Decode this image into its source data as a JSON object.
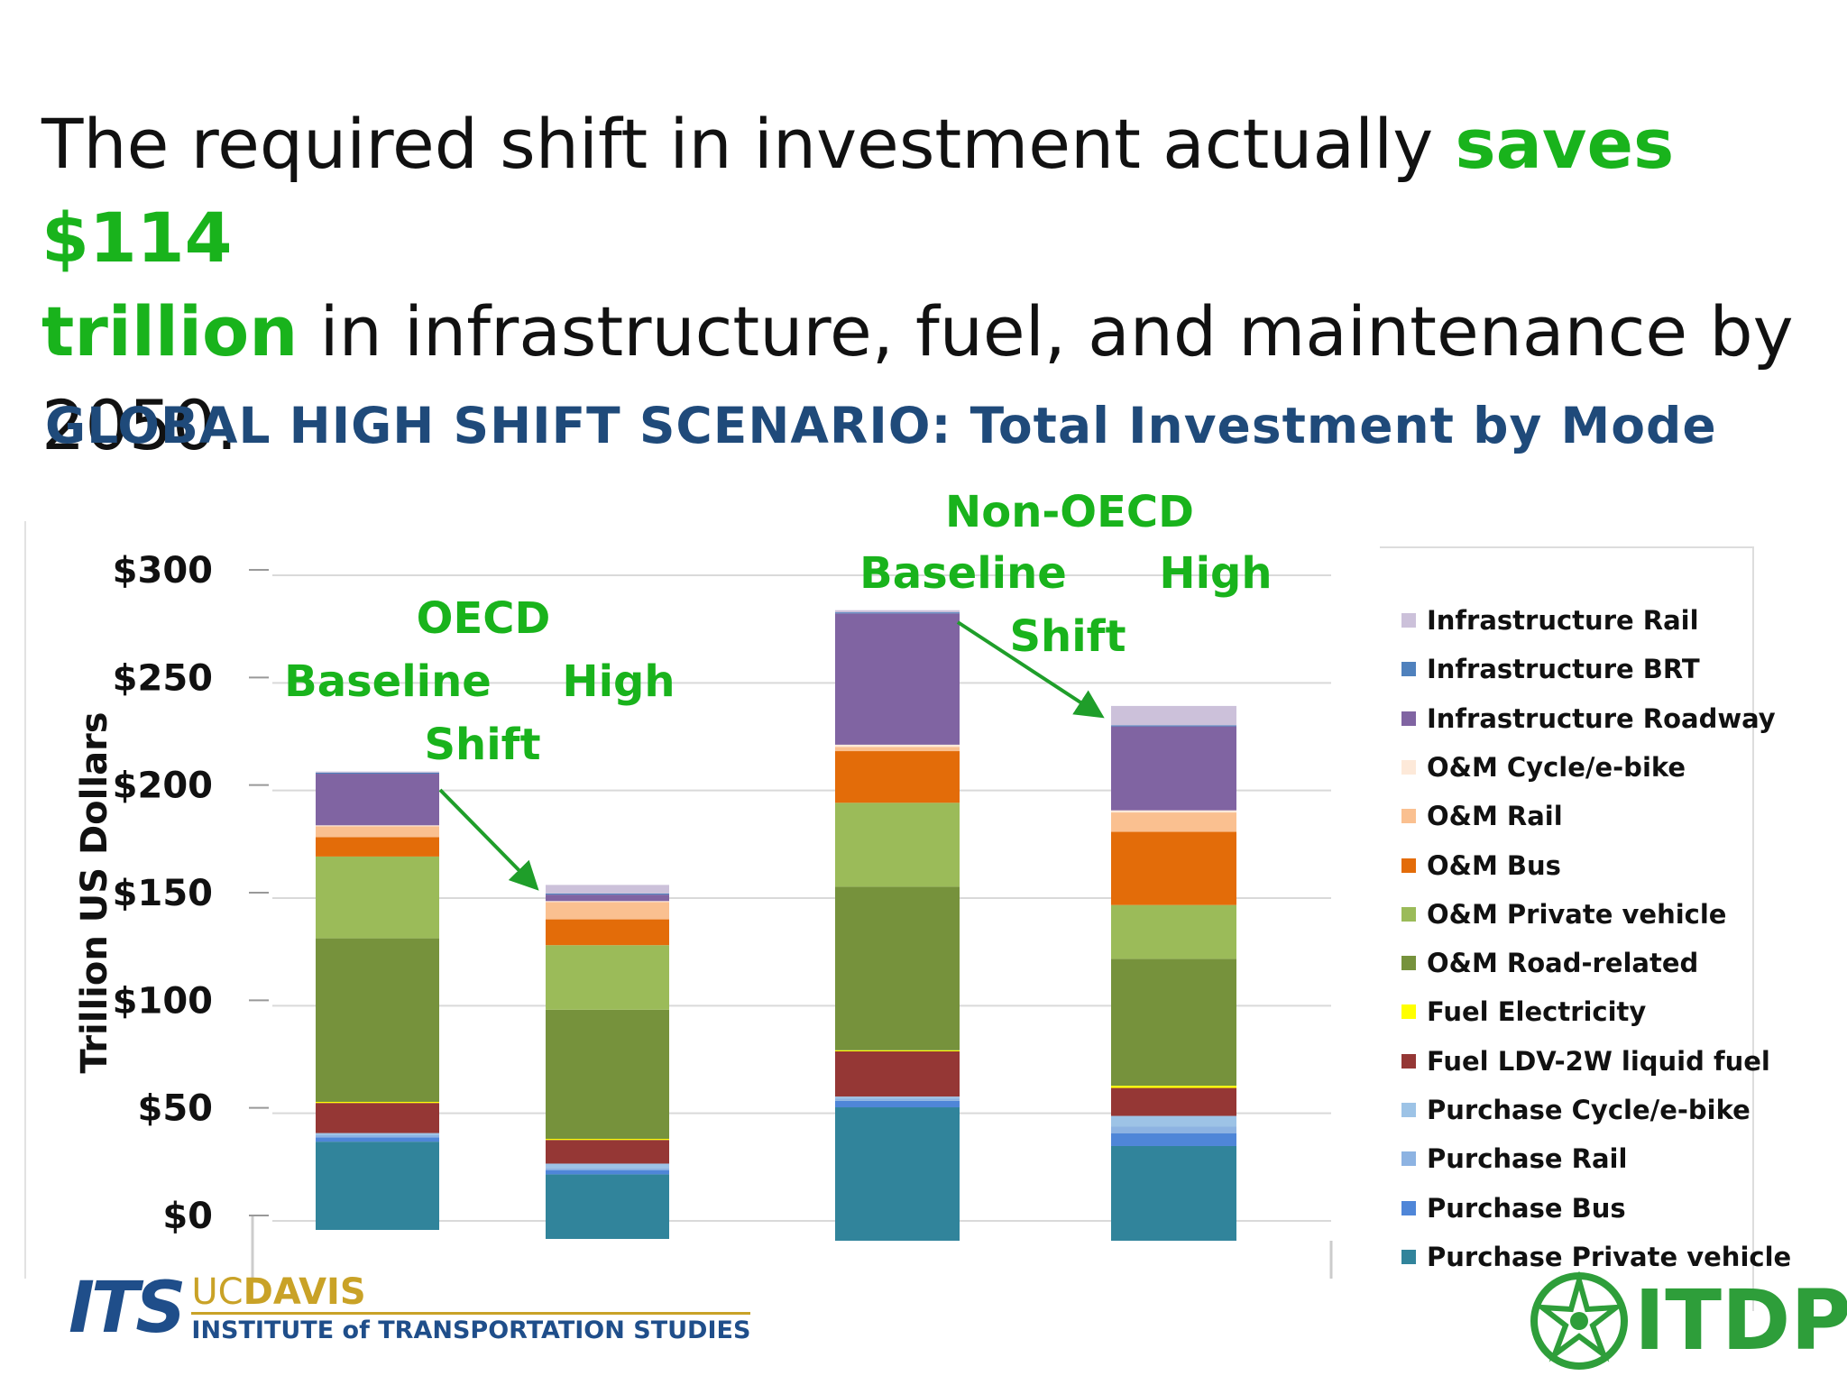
{
  "headline": {
    "part1": "The required shift in investment actually ",
    "highlight1": "saves $114",
    "highlight2": "trillion",
    "part2": " in infrastructure, fuel, and maintenance by 2050."
  },
  "subtitle": "GLOBAL HIGH SHIFT SCENARIO: Total Investment by Mode",
  "colors": {
    "highlight": "#19b31c",
    "subtitle": "#1f4a7a",
    "annotation": "#19b31c"
  },
  "chart_data": {
    "type": "bar",
    "stacked": true,
    "ylabel": "Trillion US Dollars",
    "ylim": [
      0,
      300
    ],
    "yticks": [
      "$0",
      "$50",
      "$100",
      "$150",
      "$200",
      "$250",
      "$300"
    ],
    "ytick_values": [
      0,
      50,
      100,
      150,
      200,
      250,
      300
    ],
    "grid": true,
    "legend_position": "right",
    "bars": [
      "OECD Baseline",
      "OECD High Shift",
      "Non-OECD Baseline",
      "Non-OECD High Shift"
    ],
    "series": [
      {
        "name": "Purchase Private vehicle",
        "color": "#31849b",
        "values": [
          41,
          30,
          62,
          44
        ]
      },
      {
        "name": "Purchase Bus",
        "color": "#4f86d8",
        "values": [
          2,
          2,
          3,
          6
        ]
      },
      {
        "name": "Purchase Rail",
        "color": "#8db3e2",
        "values": [
          1,
          1,
          1,
          3
        ]
      },
      {
        "name": "Purchase Cycle/e-bike",
        "color": "#9dc3e6",
        "values": [
          1,
          2,
          1,
          5
        ]
      },
      {
        "name": "Fuel LDV-2W liquid fuel",
        "color": "#953735",
        "values": [
          14,
          11,
          21,
          13
        ]
      },
      {
        "name": "Fuel Electricity",
        "color": "#ffff00",
        "values": [
          0.5,
          0.5,
          0.5,
          1
        ]
      },
      {
        "name": "O&M Road-related",
        "color": "#76923c",
        "values": [
          76,
          60,
          76,
          59
        ]
      },
      {
        "name": "O&M Private vehicle",
        "color": "#9bbb59",
        "values": [
          38,
          30,
          39,
          25
        ]
      },
      {
        "name": "O&M Bus",
        "color": "#e36c09",
        "values": [
          9,
          12,
          24,
          34
        ]
      },
      {
        "name": "O&M Rail",
        "color": "#fac090",
        "values": [
          5,
          8,
          2,
          9
        ]
      },
      {
        "name": "O&M Cycle/e-bike",
        "color": "#fde9d9",
        "values": [
          0.5,
          0.5,
          1,
          1
        ]
      },
      {
        "name": "Infrastructure Roadway",
        "color": "#8064a2",
        "values": [
          24,
          3,
          61,
          39
        ]
      },
      {
        "name": "Infrastructure BRT",
        "color": "#4f81bd",
        "values": [
          0.5,
          0.5,
          0.5,
          0.5
        ]
      },
      {
        "name": "Infrastructure Rail",
        "color": "#ccc1da",
        "values": [
          0.5,
          4,
          1,
          9
        ]
      }
    ],
    "annotations": {
      "oecd": "OECD",
      "non_oecd": "Non-OECD",
      "baseline": "Baseline",
      "high": "High",
      "shift": "Shift"
    }
  },
  "logos": {
    "its_mark": "ITS",
    "uc": "UC",
    "davis": "DAVIS",
    "its_name": "INSTITUTE of TRANSPORTATION STUDIES",
    "itdp": "ITDP"
  }
}
